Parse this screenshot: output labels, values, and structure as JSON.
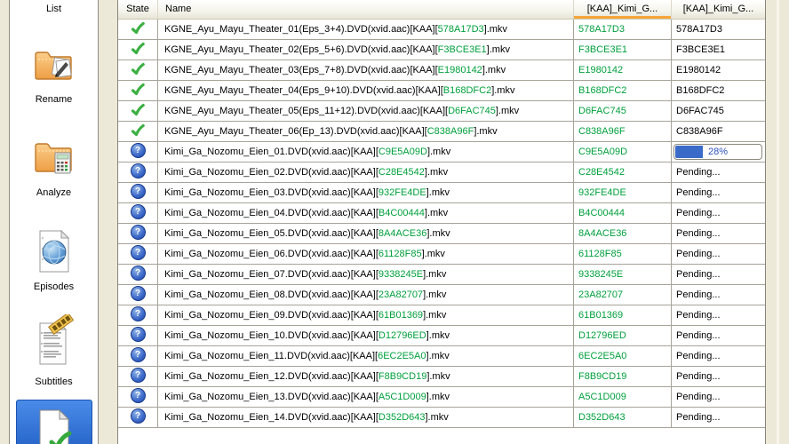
{
  "sidebar": {
    "items": [
      {
        "label": "List"
      },
      {
        "label": "Rename"
      },
      {
        "label": "Analyze"
      },
      {
        "label": "Episodes"
      },
      {
        "label": "Subtitles"
      },
      {
        "label": "",
        "selected": true
      }
    ]
  },
  "table": {
    "columns": [
      "State",
      "Name",
      "[KAA]_Kimi_G...",
      "[KAA]_Kimi_G..."
    ],
    "sorted_column_index": 2,
    "rows": [
      {
        "state": "ok",
        "prefix": "KGNE_Ayu_Mayu_Theater_01(Eps_3+4).DVD(xvid.aac)[KAA][",
        "crc": "578A17D3",
        "suffix": "].mkv",
        "col3": "578A17D3",
        "col4_type": "text",
        "col4": "578A17D3"
      },
      {
        "state": "ok",
        "prefix": "KGNE_Ayu_Mayu_Theater_02(Eps_5+6).DVD(xvid.aac)[KAA][",
        "crc": "F3BCE3E1",
        "suffix": "].mkv",
        "col3": "F3BCE3E1",
        "col4_type": "text",
        "col4": "F3BCE3E1"
      },
      {
        "state": "ok",
        "prefix": "KGNE_Ayu_Mayu_Theater_03(Eps_7+8).DVD(xvid.aac)[KAA][",
        "crc": "E1980142",
        "suffix": "].mkv",
        "col3": "E1980142",
        "col4_type": "text",
        "col4": "E1980142"
      },
      {
        "state": "ok",
        "prefix": "KGNE_Ayu_Mayu_Theater_04(Eps_9+10).DVD(xvid.aac)[KAA][",
        "crc": "B168DFC2",
        "suffix": "].mkv",
        "col3": "B168DFC2",
        "col4_type": "text",
        "col4": "B168DFC2"
      },
      {
        "state": "ok",
        "prefix": "KGNE_Ayu_Mayu_Theater_05(Eps_11+12).DVD(xvid.aac)[KAA][",
        "crc": "D6FAC745",
        "suffix": "].mkv",
        "col3": "D6FAC745",
        "col4_type": "text",
        "col4": "D6FAC745"
      },
      {
        "state": "ok",
        "prefix": "KGNE_Ayu_Mayu_Theater_06(Ep_13).DVD(xvid.aac)[KAA][",
        "crc": "C838A96F",
        "suffix": "].mkv",
        "col3": "C838A96F",
        "col4_type": "text",
        "col4": "C838A96F"
      },
      {
        "state": "unknown",
        "prefix": "Kimi_Ga_Nozomu_Eien_01.DVD(xvid.aac)[KAA][",
        "crc": "C9E5A09D",
        "suffix": "].mkv",
        "col3": "C9E5A09D",
        "col4_type": "progress",
        "progress_pct": 28,
        "progress_label": "28%"
      },
      {
        "state": "unknown",
        "prefix": "Kimi_Ga_Nozomu_Eien_02.DVD(xvid.aac)[KAA][",
        "crc": "C28E4542",
        "suffix": "].mkv",
        "col3": "C28E4542",
        "col4_type": "text",
        "col4": "Pending..."
      },
      {
        "state": "unknown",
        "prefix": "Kimi_Ga_Nozomu_Eien_03.DVD(xvid.aac)[KAA][",
        "crc": "932FE4DE",
        "suffix": "].mkv",
        "col3": "932FE4DE",
        "col4_type": "text",
        "col4": "Pending..."
      },
      {
        "state": "unknown",
        "prefix": "Kimi_Ga_Nozomu_Eien_04.DVD(xvid.aac)[KAA][",
        "crc": "B4C00444",
        "suffix": "].mkv",
        "col3": "B4C00444",
        "col4_type": "text",
        "col4": "Pending..."
      },
      {
        "state": "unknown",
        "prefix": "Kimi_Ga_Nozomu_Eien_05.DVD(xvid.aac)[KAA][",
        "crc": "8A4ACE36",
        "suffix": "].mkv",
        "col3": "8A4ACE36",
        "col4_type": "text",
        "col4": "Pending..."
      },
      {
        "state": "unknown",
        "prefix": "Kimi_Ga_Nozomu_Eien_06.DVD(xvid.aac)[KAA][",
        "crc": "61128F85",
        "suffix": "].mkv",
        "col3": "61128F85",
        "col4_type": "text",
        "col4": "Pending..."
      },
      {
        "state": "unknown",
        "prefix": "Kimi_Ga_Nozomu_Eien_07.DVD(xvid.aac)[KAA][",
        "crc": "9338245E",
        "suffix": "].mkv",
        "col3": "9338245E",
        "col4_type": "text",
        "col4": "Pending..."
      },
      {
        "state": "unknown",
        "prefix": "Kimi_Ga_Nozomu_Eien_08.DVD(xvid.aac)[KAA][",
        "crc": "23A82707",
        "suffix": "].mkv",
        "col3": "23A82707",
        "col4_type": "text",
        "col4": "Pending..."
      },
      {
        "state": "unknown",
        "prefix": "Kimi_Ga_Nozomu_Eien_09.DVD(xvid.aac)[KAA][",
        "crc": "61B01369",
        "suffix": "].mkv",
        "col3": "61B01369",
        "col4_type": "text",
        "col4": "Pending..."
      },
      {
        "state": "unknown",
        "prefix": "Kimi_Ga_Nozomu_Eien_10.DVD(xvid.aac)[KAA][",
        "crc": "D12796ED",
        "suffix": "].mkv",
        "col3": "D12796ED",
        "col4_type": "text",
        "col4": "Pending..."
      },
      {
        "state": "unknown",
        "prefix": "Kimi_Ga_Nozomu_Eien_11.DVD(xvid.aac)[KAA][",
        "crc": "6EC2E5A0",
        "suffix": "].mkv",
        "col3": "6EC2E5A0",
        "col4_type": "text",
        "col4": "Pending..."
      },
      {
        "state": "unknown",
        "prefix": "Kimi_Ga_Nozomu_Eien_12.DVD(xvid.aac)[KAA][",
        "crc": "F8B9CD19",
        "suffix": "].mkv",
        "col3": "F8B9CD19",
        "col4_type": "text",
        "col4": "Pending..."
      },
      {
        "state": "unknown",
        "prefix": "Kimi_Ga_Nozomu_Eien_13.DVD(xvid.aac)[KAA][",
        "crc": "A5C1D009",
        "suffix": "].mkv",
        "col3": "A5C1D009",
        "col4_type": "text",
        "col4": "Pending..."
      },
      {
        "state": "unknown",
        "prefix": "Kimi_Ga_Nozomu_Eien_14.DVD(xvid.aac)[KAA][",
        "crc": "D352D643",
        "suffix": "].mkv",
        "col3": "D352D643",
        "col4_type": "text",
        "col4": "Pending..."
      }
    ]
  },
  "colors": {
    "crc_green": "#00A03C",
    "sort_indicator_orange": "#F6A63B",
    "progress_fill": "#3A6BC8",
    "progress_text": "#2B51B8",
    "selection_blue": "#2E6FD0",
    "window_background": "#ECE9D8"
  }
}
